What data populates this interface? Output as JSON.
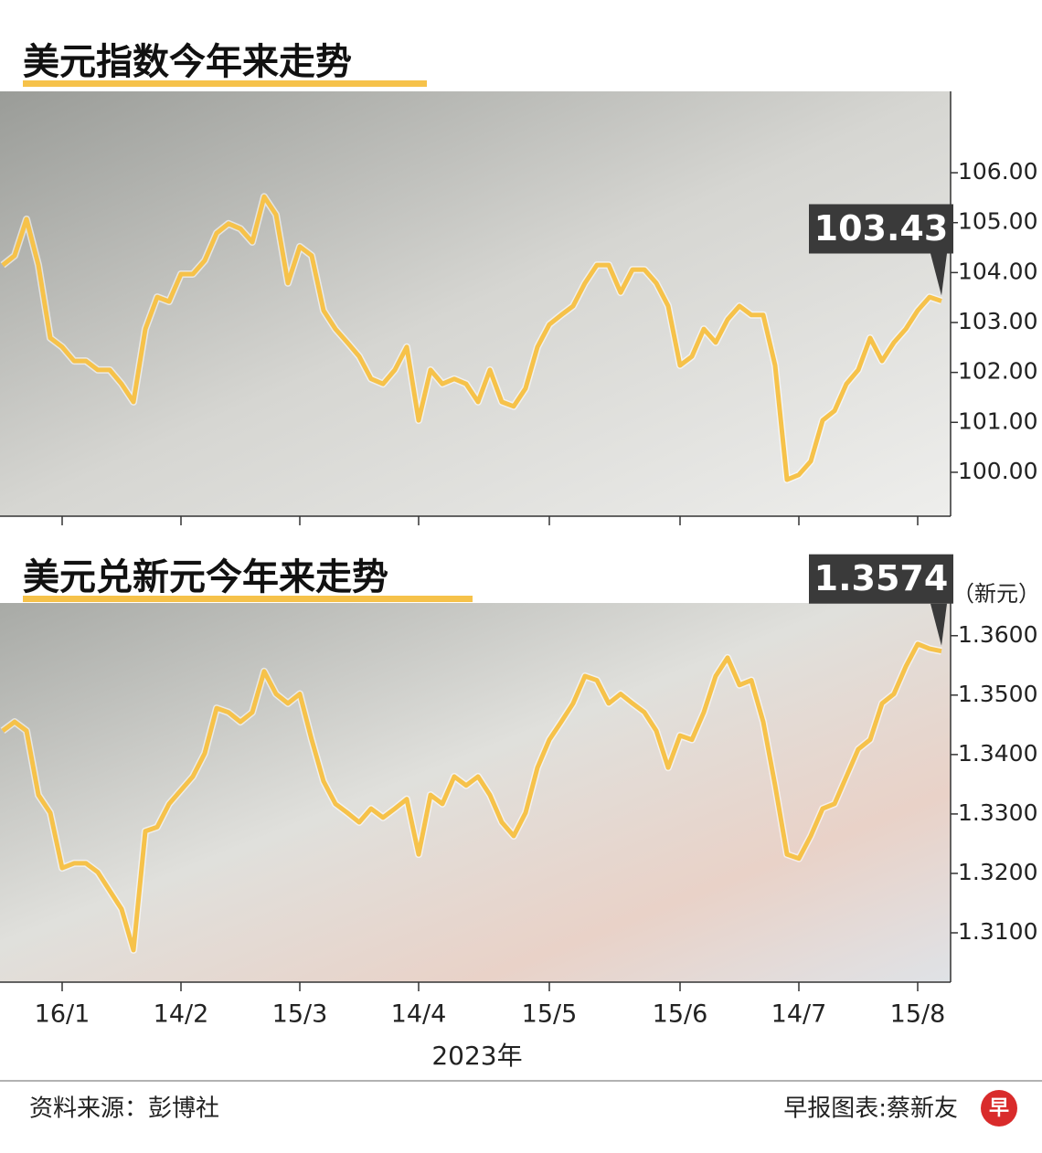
{
  "chart_data": [
    {
      "type": "line",
      "title": "美元指数今年来走势",
      "color": "#f6c24a",
      "categories": [
        null,
        null,
        null,
        null,
        null,
        "16/1",
        null,
        null,
        null,
        null,
        null,
        null,
        null,
        null,
        null,
        "14/2",
        null,
        null,
        null,
        null,
        null,
        null,
        null,
        null,
        null,
        "15/3",
        null,
        null,
        null,
        null,
        null,
        null,
        null,
        null,
        null,
        "14/4",
        null,
        null,
        null,
        null,
        null,
        null,
        null,
        null,
        null,
        null,
        "15/5",
        null,
        null,
        null,
        null,
        null,
        null,
        null,
        null,
        null,
        null,
        "15/6",
        null,
        null,
        null,
        null,
        null,
        null,
        null,
        null,
        null,
        "14/7",
        null,
        null,
        null,
        null,
        null,
        null,
        null,
        null,
        null,
        "15/8",
        null,
        null
      ],
      "values": [
        104.15,
        104.34,
        105.07,
        104.15,
        102.69,
        102.51,
        102.23,
        102.23,
        102.05,
        102.05,
        101.77,
        101.41,
        102.87,
        103.51,
        103.42,
        103.97,
        103.97,
        104.24,
        104.79,
        104.98,
        104.88,
        104.61,
        105.52,
        105.16,
        103.79,
        104.52,
        104.34,
        103.24,
        102.87,
        102.6,
        102.32,
        101.87,
        101.77,
        102.05,
        102.51,
        101.04,
        102.05,
        101.77,
        101.87,
        101.77,
        101.41,
        102.05,
        101.41,
        101.32,
        101.68,
        102.51,
        102.96,
        103.15,
        103.33,
        103.79,
        104.15,
        104.15,
        103.6,
        104.06,
        104.06,
        103.79,
        103.33,
        102.14,
        102.32,
        102.87,
        102.6,
        103.06,
        103.33,
        103.15,
        103.15,
        102.14,
        99.85,
        99.95,
        100.22,
        101.04,
        101.23,
        101.77,
        102.05,
        102.69,
        102.23,
        102.6,
        102.87,
        103.24,
        103.51,
        103.43
      ],
      "value_labels": [
        null,
        null,
        null,
        null,
        null,
        null,
        null,
        null,
        null,
        null,
        null,
        null,
        null,
        null,
        null,
        null,
        null,
        null,
        null,
        null,
        null,
        null,
        null,
        null,
        null,
        null,
        null,
        null,
        null,
        null,
        null,
        null,
        null,
        null,
        null,
        null,
        null,
        null,
        null,
        null,
        null,
        null,
        null,
        null,
        null,
        null,
        null,
        null,
        null,
        null,
        null,
        null,
        null,
        null,
        null,
        null,
        null,
        null,
        null,
        null,
        null,
        null,
        null,
        null,
        null,
        null,
        null,
        null,
        null,
        null,
        null,
        null,
        null,
        null,
        null,
        null,
        null,
        null,
        null,
        "103.43"
      ],
      "ylim": [
        99.12,
        107.63
      ],
      "yticks": [
        {
          "value": 100,
          "label": "100.00"
        },
        {
          "value": 101,
          "label": "101.00"
        },
        {
          "value": 102,
          "label": "102.00"
        },
        {
          "value": 103,
          "label": "103.00"
        },
        {
          "value": 104,
          "label": "104.00"
        },
        {
          "value": 105,
          "label": "105.00"
        },
        {
          "value": 106,
          "label": "106.00"
        }
      ]
    },
    {
      "type": "line",
      "title": "美元兑新元今年来走势",
      "color": "#f6c24a",
      "y_unit": "（新元）",
      "xlabel": "2023年",
      "categories": [
        null,
        null,
        null,
        null,
        null,
        "16/1",
        null,
        null,
        null,
        null,
        null,
        null,
        null,
        null,
        null,
        "14/2",
        null,
        null,
        null,
        null,
        null,
        null,
        null,
        null,
        null,
        "15/3",
        null,
        null,
        null,
        null,
        null,
        null,
        null,
        null,
        null,
        "14/4",
        null,
        null,
        null,
        null,
        null,
        null,
        null,
        null,
        null,
        null,
        "15/5",
        null,
        null,
        null,
        null,
        null,
        null,
        null,
        null,
        null,
        null,
        "15/6",
        null,
        null,
        null,
        null,
        null,
        null,
        null,
        null,
        null,
        "14/7",
        null,
        null,
        null,
        null,
        null,
        null,
        null,
        null,
        null,
        "15/8",
        null,
        null
      ],
      "values": [
        1.344,
        1.3455,
        1.344,
        1.3332,
        1.3302,
        1.3209,
        1.3217,
        1.3217,
        1.3202,
        1.3171,
        1.314,
        1.3071,
        1.3271,
        1.3278,
        1.3317,
        1.334,
        1.3363,
        1.3402,
        1.3478,
        1.3471,
        1.3455,
        1.3471,
        1.354,
        1.3502,
        1.3486,
        1.3502,
        1.3425,
        1.3355,
        1.3317,
        1.3302,
        1.3286,
        1.3309,
        1.3294,
        1.3309,
        1.3325,
        1.3232,
        1.3332,
        1.3317,
        1.3363,
        1.3348,
        1.3363,
        1.3332,
        1.3286,
        1.3263,
        1.3302,
        1.3378,
        1.3425,
        1.3455,
        1.3486,
        1.3532,
        1.3525,
        1.3486,
        1.3502,
        1.3486,
        1.3471,
        1.344,
        1.3378,
        1.3432,
        1.3425,
        1.3471,
        1.3532,
        1.3563,
        1.3517,
        1.3525,
        1.3455,
        1.3348,
        1.3232,
        1.3225,
        1.3263,
        1.3309,
        1.3317,
        1.3363,
        1.3409,
        1.3425,
        1.3486,
        1.3502,
        1.3548,
        1.3586,
        1.3578,
        1.3574
      ],
      "value_labels": [
        null,
        null,
        null,
        null,
        null,
        null,
        null,
        null,
        null,
        null,
        null,
        null,
        null,
        null,
        null,
        null,
        null,
        null,
        null,
        null,
        null,
        null,
        null,
        null,
        null,
        null,
        null,
        null,
        null,
        null,
        null,
        null,
        null,
        null,
        null,
        null,
        null,
        null,
        null,
        null,
        null,
        null,
        null,
        null,
        null,
        null,
        null,
        null,
        null,
        null,
        null,
        null,
        null,
        null,
        null,
        null,
        null,
        null,
        null,
        null,
        null,
        null,
        null,
        null,
        null,
        null,
        null,
        null,
        null,
        null,
        null,
        null,
        null,
        null,
        null,
        null,
        null,
        null,
        null,
        "1.3574"
      ],
      "ylim": [
        1.3017,
        1.3655
      ],
      "yticks": [
        {
          "value": 1.31,
          "label": "1.3100"
        },
        {
          "value": 1.32,
          "label": "1.3200"
        },
        {
          "value": 1.33,
          "label": "1.3300"
        },
        {
          "value": 1.34,
          "label": "1.3400"
        },
        {
          "value": 1.35,
          "label": "1.3500"
        },
        {
          "value": 1.36,
          "label": "1.3600"
        }
      ]
    }
  ],
  "footer": {
    "source": "资料来源：彭博社",
    "credit": "早报图表:蔡新友",
    "logo": "早"
  }
}
